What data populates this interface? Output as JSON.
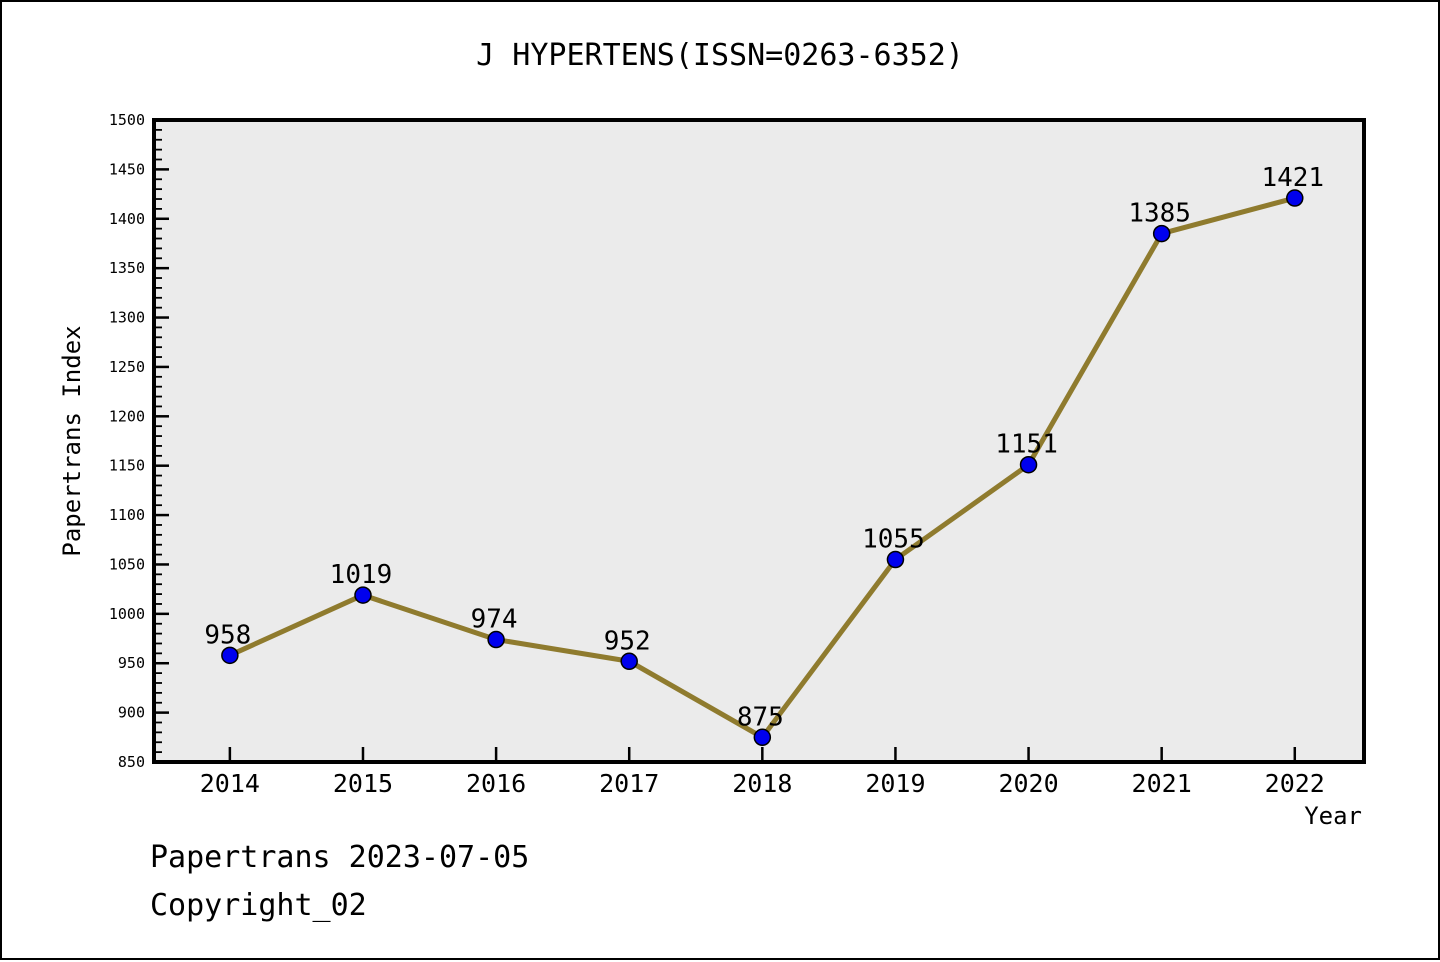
{
  "window": {
    "title": "J HYPERTENS(ISSN=0263-6352)"
  },
  "chart_data": {
    "type": "line",
    "title": "J HYPERTENS(ISSN=0263-6352)",
    "xlabel": "Year",
    "ylabel": "Papertrans Index",
    "x": [
      2014,
      2015,
      2016,
      2017,
      2018,
      2019,
      2020,
      2021,
      2022
    ],
    "series": [
      {
        "name": "Papertrans Index",
        "values": [
          958,
          1019,
          974,
          952,
          875,
          1055,
          1151,
          1385,
          1421
        ]
      }
    ],
    "point_labels": [
      "958",
      "1019",
      "974",
      "952",
      "875",
      "1055",
      "1151",
      "1385",
      "1421"
    ],
    "ylim": [
      850,
      1500
    ],
    "xlim": [
      2013.43,
      2022.52
    ],
    "ytick_major_step": 50,
    "ytick_minor_step": 10,
    "ytick_labels": [
      "850",
      "900",
      "950",
      "1000",
      "1050",
      "1100",
      "1150",
      "1200",
      "1250",
      "1300",
      "1350",
      "1400",
      "1450",
      "1500"
    ],
    "xtick_labels": [
      "2014",
      "2015",
      "2016",
      "2017",
      "2018",
      "2019",
      "2020",
      "2021",
      "2022"
    ],
    "grid": false,
    "legend": null,
    "colors": {
      "line": "#8F7B2E",
      "marker_fill": "#0000EE",
      "marker_edge": "#000000",
      "plot_background": "#EBEBEB",
      "axis": "#000000",
      "text": "#000000"
    }
  },
  "footer": {
    "line1": "Papertrans 2023-07-05",
    "line2": "Copyright_02"
  }
}
